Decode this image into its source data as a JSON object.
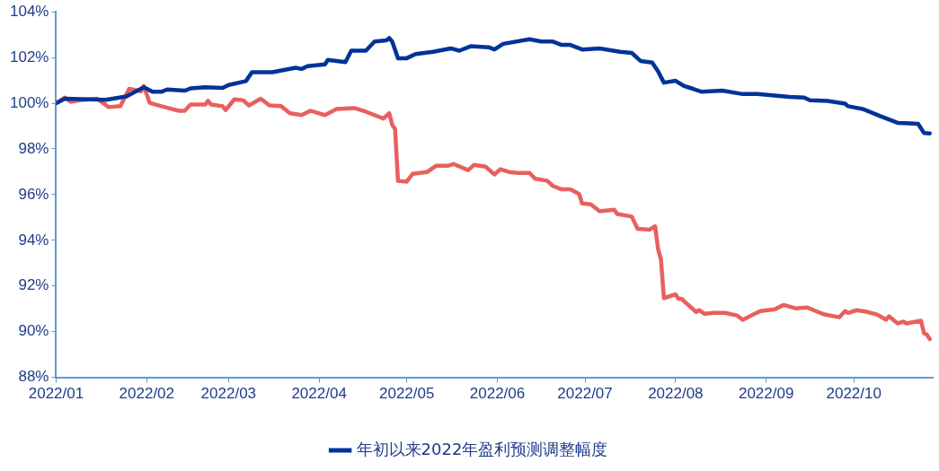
{
  "chart_data": {
    "type": "line",
    "legend": "bottom",
    "grid": false,
    "marker": "none",
    "line_style": "solid",
    "xlim": [
      "2022-01-01",
      "2022-10-28"
    ],
    "xticks": [
      {
        "value": "2022-01",
        "label": "2022/01"
      },
      {
        "value": "2022-02",
        "label": "2022/02"
      },
      {
        "value": "2022-03",
        "label": "2022/03"
      },
      {
        "value": "2022-04",
        "label": "2022/04"
      },
      {
        "value": "2022-05",
        "label": "2022/05"
      },
      {
        "value": "2022-06",
        "label": "2022/06"
      },
      {
        "value": "2022-07",
        "label": "2022/07"
      },
      {
        "value": "2022-08",
        "label": "2022/08"
      },
      {
        "value": "2022-09",
        "label": "2022/09"
      },
      {
        "value": "2022-10",
        "label": "2022/10"
      }
    ],
    "ylim": [
      88,
      104
    ],
    "yticks": [
      {
        "value": 88,
        "label": "88%"
      },
      {
        "value": 90,
        "label": "90%"
      },
      {
        "value": 92,
        "label": "92%"
      },
      {
        "value": 94,
        "label": "94%"
      },
      {
        "value": 96,
        "label": "96%"
      },
      {
        "value": 98,
        "label": "98%"
      },
      {
        "value": 100,
        "label": "100%"
      },
      {
        "value": 102,
        "label": "102%"
      },
      {
        "value": 104,
        "label": "104%"
      }
    ],
    "series": [
      {
        "name": "年初以来2022年盈利预测调整幅度",
        "color": "#003399",
        "x": [
          "2022-01-01",
          "2022-01-04",
          "2022-01-18",
          "2022-01-25",
          "2022-01-31",
          "2022-02-03",
          "2022-02-06",
          "2022-02-08",
          "2022-02-14",
          "2022-02-16",
          "2022-02-21",
          "2022-02-27",
          "2022-03-01",
          "2022-03-07",
          "2022-03-09",
          "2022-03-16",
          "2022-03-24",
          "2022-03-26",
          "2022-03-28",
          "2022-04-03",
          "2022-04-04",
          "2022-04-10",
          "2022-04-12",
          "2022-04-17",
          "2022-04-20",
          "2022-04-24",
          "2022-04-25",
          "2022-04-26",
          "2022-04-28",
          "2022-05-01",
          "2022-05-04",
          "2022-05-10",
          "2022-05-16",
          "2022-05-19",
          "2022-05-23",
          "2022-05-29",
          "2022-05-31",
          "2022-06-03",
          "2022-06-12",
          "2022-06-16",
          "2022-06-20",
          "2022-06-23",
          "2022-06-26",
          "2022-06-30",
          "2022-07-06",
          "2022-07-13",
          "2022-07-17",
          "2022-07-20",
          "2022-07-24",
          "2022-07-26",
          "2022-07-28",
          "2022-08-01",
          "2022-08-04",
          "2022-08-07",
          "2022-08-10",
          "2022-08-17",
          "2022-08-24",
          "2022-08-29",
          "2022-09-09",
          "2022-09-14",
          "2022-09-16",
          "2022-09-22",
          "2022-09-28",
          "2022-09-29",
          "2022-10-04",
          "2022-10-10",
          "2022-10-16",
          "2022-10-23",
          "2022-10-25",
          "2022-10-27"
        ],
        "values": [
          100.0,
          100.2,
          100.15,
          100.3,
          100.7,
          100.5,
          100.5,
          100.6,
          100.55,
          100.65,
          100.7,
          100.67,
          100.8,
          100.97,
          101.36,
          101.36,
          101.55,
          101.5,
          101.62,
          101.7,
          101.9,
          101.8,
          102.3,
          102.3,
          102.7,
          102.75,
          102.85,
          102.7,
          101.97,
          101.97,
          102.15,
          102.25,
          102.4,
          102.3,
          102.5,
          102.45,
          102.35,
          102.6,
          102.8,
          102.7,
          102.7,
          102.55,
          102.55,
          102.35,
          102.4,
          102.25,
          102.2,
          101.85,
          101.78,
          101.4,
          100.9,
          100.98,
          100.75,
          100.63,
          100.5,
          100.55,
          100.4,
          100.4,
          100.28,
          100.25,
          100.13,
          100.1,
          99.98,
          99.87,
          99.75,
          99.44,
          99.14,
          99.1,
          98.7,
          98.68
        ]
      },
      {
        "color": "#e8605e",
        "x": [
          "2022-01-01",
          "2022-01-04",
          "2022-01-06",
          "2022-01-09",
          "2022-01-15",
          "2022-01-19",
          "2022-01-23",
          "2022-01-24",
          "2022-01-26",
          "2022-01-30",
          "2022-01-31",
          "2022-02-02",
          "2022-02-06",
          "2022-02-12",
          "2022-02-14",
          "2022-02-16",
          "2022-02-21",
          "2022-02-22",
          "2022-02-23",
          "2022-02-27",
          "2022-02-28",
          "2022-03-03",
          "2022-03-06",
          "2022-03-08",
          "2022-03-12",
          "2022-03-15",
          "2022-03-19",
          "2022-03-22",
          "2022-03-26",
          "2022-03-29",
          "2022-04-03",
          "2022-04-07",
          "2022-04-13",
          "2022-04-17",
          "2022-04-23",
          "2022-04-25",
          "2022-04-26",
          "2022-04-27",
          "2022-04-28",
          "2022-05-01",
          "2022-05-03",
          "2022-05-08",
          "2022-05-11",
          "2022-05-15",
          "2022-05-17",
          "2022-05-22",
          "2022-05-24",
          "2022-05-28",
          "2022-05-31",
          "2022-06-02",
          "2022-06-05",
          "2022-06-08",
          "2022-06-12",
          "2022-06-14",
          "2022-06-18",
          "2022-06-20",
          "2022-06-23",
          "2022-06-26",
          "2022-06-29",
          "2022-06-30",
          "2022-07-03",
          "2022-07-06",
          "2022-07-11",
          "2022-07-12",
          "2022-07-17",
          "2022-07-19",
          "2022-07-23",
          "2022-07-25",
          "2022-07-26",
          "2022-07-27",
          "2022-07-28",
          "2022-08-01",
          "2022-08-02",
          "2022-08-03",
          "2022-08-08",
          "2022-08-09",
          "2022-08-11",
          "2022-08-14",
          "2022-08-18",
          "2022-08-22",
          "2022-08-24",
          "2022-08-27",
          "2022-08-30",
          "2022-09-04",
          "2022-09-07",
          "2022-09-11",
          "2022-09-15",
          "2022-09-18",
          "2022-09-21",
          "2022-09-26",
          "2022-09-28",
          "2022-09-29",
          "2022-10-02",
          "2022-10-05",
          "2022-10-09",
          "2022-10-12",
          "2022-10-13",
          "2022-10-16",
          "2022-10-18",
          "2022-10-19",
          "2022-10-24",
          "2022-10-25",
          "2022-10-26",
          "2022-10-27"
        ],
        "values": [
          100.0,
          100.25,
          100.06,
          100.13,
          100.2,
          99.83,
          99.87,
          100.13,
          100.63,
          100.52,
          100.75,
          100.02,
          99.87,
          99.67,
          99.67,
          99.94,
          99.94,
          100.1,
          99.94,
          99.87,
          99.7,
          100.17,
          100.13,
          99.9,
          100.2,
          99.9,
          99.87,
          99.56,
          99.48,
          99.67,
          99.48,
          99.75,
          99.79,
          99.63,
          99.33,
          99.56,
          99.06,
          98.87,
          96.6,
          96.57,
          96.91,
          96.99,
          97.26,
          97.26,
          97.34,
          97.07,
          97.3,
          97.22,
          96.88,
          97.11,
          96.99,
          96.95,
          96.95,
          96.69,
          96.61,
          96.38,
          96.23,
          96.23,
          96.03,
          95.61,
          95.57,
          95.27,
          95.34,
          95.15,
          95.04,
          94.5,
          94.46,
          94.61,
          93.62,
          93.16,
          91.47,
          91.63,
          91.44,
          91.44,
          90.86,
          90.94,
          90.78,
          90.82,
          90.82,
          90.71,
          90.52,
          90.71,
          90.9,
          90.98,
          91.17,
          91.02,
          91.06,
          90.9,
          90.75,
          90.63,
          90.9,
          90.82,
          90.94,
          90.88,
          90.75,
          90.52,
          90.67,
          90.36,
          90.44,
          90.36,
          90.48,
          89.94,
          89.87,
          89.67
        ]
      }
    ]
  }
}
